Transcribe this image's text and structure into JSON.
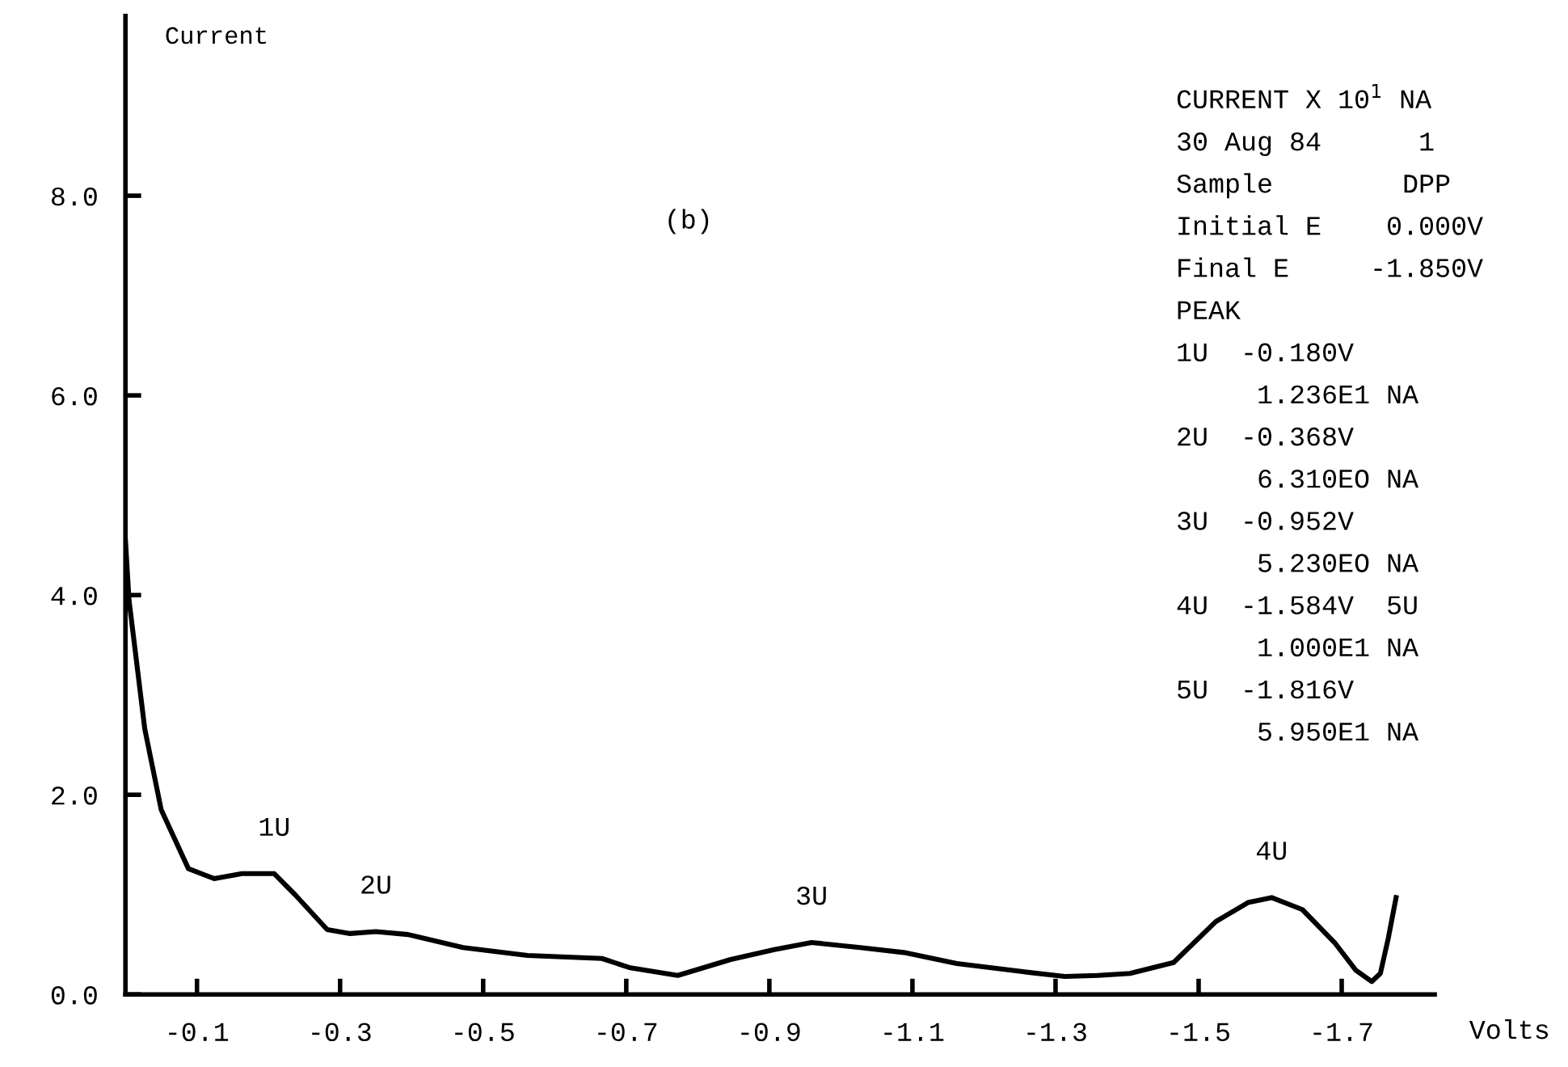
{
  "chart_data": {
    "type": "line",
    "xlabel": "Volts",
    "ylabel": "Current",
    "x": [
      0.0,
      -0.005,
      -0.027,
      -0.05,
      -0.088,
      -0.124,
      -0.163,
      -0.208,
      -0.237,
      -0.282,
      -0.314,
      -0.35,
      -0.395,
      -0.472,
      -0.562,
      -0.666,
      -0.704,
      -0.772,
      -0.846,
      -0.907,
      -0.959,
      -1.027,
      -1.088,
      -1.162,
      -1.252,
      -1.313,
      -1.359,
      -1.404,
      -1.465,
      -1.524,
      -1.569,
      -1.602,
      -1.645,
      -1.69,
      -1.72,
      -1.742,
      -1.754,
      -1.765,
      -1.776
    ],
    "series": [
      {
        "color": "#000000",
        "values": [
          4.55,
          3.95,
          2.66,
          1.85,
          1.26,
          1.16,
          1.21,
          1.21,
          1.0,
          0.65,
          0.61,
          0.63,
          0.6,
          0.47,
          0.39,
          0.36,
          0.27,
          0.19,
          0.35,
          0.45,
          0.52,
          0.47,
          0.42,
          0.31,
          0.23,
          0.18,
          0.19,
          0.21,
          0.32,
          0.73,
          0.92,
          0.97,
          0.85,
          0.52,
          0.24,
          0.13,
          0.21,
          0.56,
          0.97
        ]
      }
    ],
    "xlim": [
      0,
      -1.83
    ],
    "ylim": [
      0,
      9.8
    ],
    "xticks": [
      -0.1,
      -0.3,
      -0.5,
      -0.7,
      -0.9,
      -1.1,
      -1.3,
      -1.5,
      -1.7
    ],
    "yticks": [
      {
        "value": 0,
        "label": "0.0"
      },
      {
        "value": 2,
        "label": "2.0"
      },
      {
        "value": 4,
        "label": "4.0"
      },
      {
        "value": 6,
        "label": "6.0"
      },
      {
        "value": 8,
        "label": "8.0"
      }
    ],
    "grid": false,
    "legend": false,
    "marker": "none",
    "line_style": "solid",
    "annotations": [
      {
        "text": "1U",
        "x": -0.208,
        "y": 1.21
      },
      {
        "text": "2U",
        "x": -0.35,
        "y": 0.63
      },
      {
        "text": "3U",
        "x": -0.959,
        "y": 0.52
      },
      {
        "text": "4U",
        "x": -1.602,
        "y": 0.97
      },
      "(b)",
      "CURRENT X 10$^{1}$ NA",
      "30 Aug 84      1",
      "Sample        DPP",
      "Initial E    0.000V",
      "Final E     -1.850V",
      "PEAK",
      "1U  -0.180V",
      "     1.236E1 NA",
      "2U  -0.368V",
      "     6.310EO NA",
      "3U  -0.952V",
      "     5.230EO NA",
      "4U  -1.584V  5U",
      "     1.000E1 NA",
      "5U  -1.816V",
      "     5.950E1 NA"
    ]
  }
}
